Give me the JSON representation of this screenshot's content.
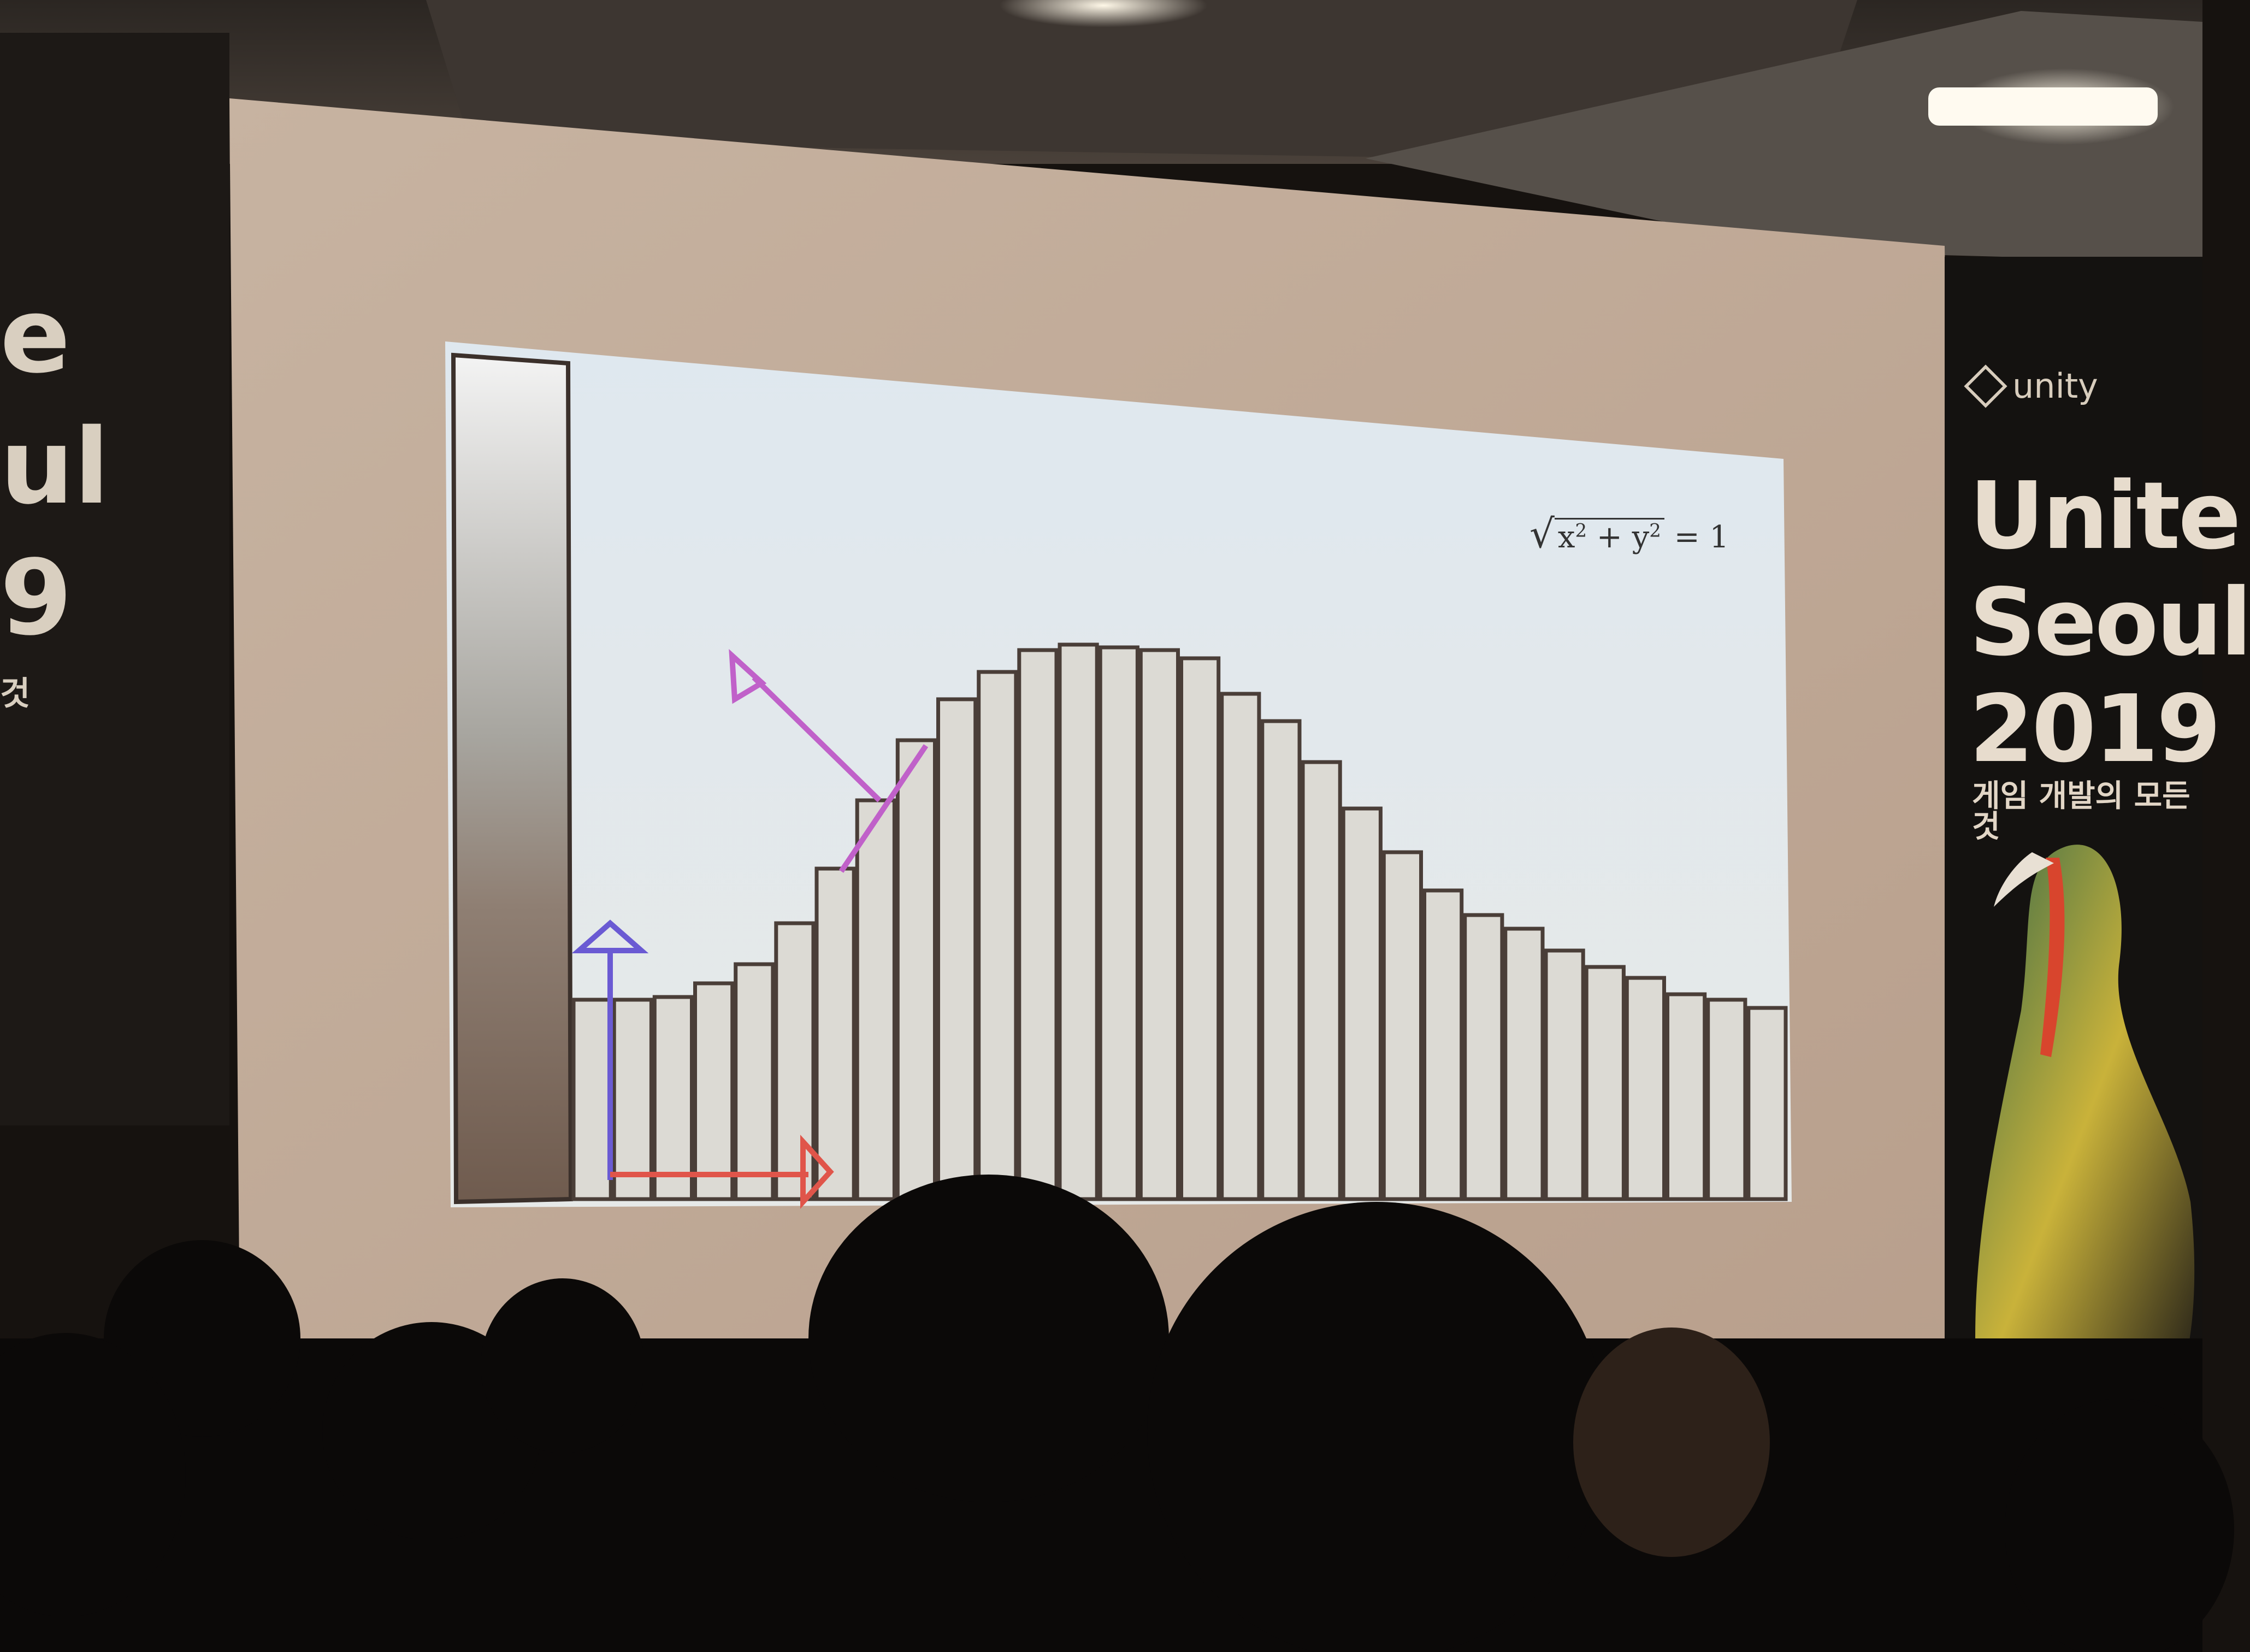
{
  "scene": {
    "description_type": "photo",
    "colors": {
      "screen": "#c9b8a6",
      "slide_bg": "#dde6ec",
      "bar_fill": "#dcdad4",
      "bar_stroke": "#4a3e38",
      "up_arrow": "#6a5ad3",
      "right_arrow": "#e0554a",
      "normal_arrow": "#c061c9"
    }
  },
  "slide": {
    "formula": {
      "left": "√",
      "x": "x",
      "exp": "2",
      "plus": " + ",
      "y": "y",
      "right": " = 1"
    }
  },
  "banner_right": {
    "logo_text": "unity",
    "title_line1": "Unite",
    "title_line2": "Seoul",
    "title_line3": "2019",
    "tagline": "게임 개발의 모든 것"
  },
  "banner_left": {
    "line1": "e",
    "line2": "ul",
    "line3": "9",
    "line4": "것"
  }
}
